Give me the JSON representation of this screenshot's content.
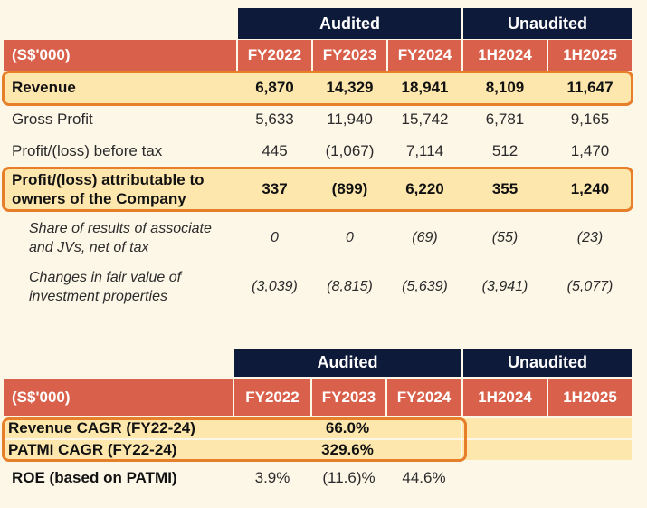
{
  "table1": {
    "group_audited": "Audited",
    "group_unaudited": "Unaudited",
    "unit_label": "(S$'000)",
    "columns": [
      "FY2022",
      "FY2023",
      "FY2024",
      "1H2024",
      "1H2025"
    ],
    "rows": [
      {
        "label": "Revenue",
        "values": [
          "6,870",
          "14,329",
          "18,941",
          "8,109",
          "11,647"
        ]
      },
      {
        "label": "Gross Profit",
        "values": [
          "5,633",
          "11,940",
          "15,742",
          "6,781",
          "9,165"
        ]
      },
      {
        "label": "Profit/(loss) before tax",
        "values": [
          "445",
          "(1,067)",
          "7,114",
          "512",
          "1,470"
        ]
      },
      {
        "label_line1": "Profit/(loss) attributable to",
        "label_line2": "owners of the Company",
        "values": [
          "337",
          "(899)",
          "6,220",
          "355",
          "1,240"
        ]
      },
      {
        "label_line1": "Share of results of associate",
        "label_line2": "and JVs, net of tax",
        "values": [
          "0",
          "0",
          "(69)",
          "(55)",
          "(23)"
        ]
      },
      {
        "label_line1": "Changes in fair value of",
        "label_line2": "investment properties",
        "values": [
          "(3,039)",
          "(8,815)",
          "(5,639)",
          "(3,941)",
          "(5,077)"
        ]
      }
    ]
  },
  "table2": {
    "group_audited": "Audited",
    "group_unaudited": "Unaudited",
    "unit_label": "(S$'000)",
    "columns": [
      "FY2022",
      "FY2023",
      "FY2024",
      "1H2024",
      "1H2025"
    ],
    "rows": [
      {
        "label": "Revenue CAGR (FY22-24)",
        "value": "66.0%"
      },
      {
        "label": "PATMI CAGR (FY22-24)",
        "value": "329.6%"
      },
      {
        "label": "ROE (based on PATMI)",
        "values": [
          "3.9%",
          "(11.6)%",
          "44.6%",
          "",
          ""
        ]
      }
    ]
  },
  "colors": {
    "navy": "#0e1a3a",
    "header_red": "#d9604a",
    "band_yellow": "#fde7ad",
    "highlight_orange": "#e67e2a",
    "background": "#fdf7e8"
  }
}
